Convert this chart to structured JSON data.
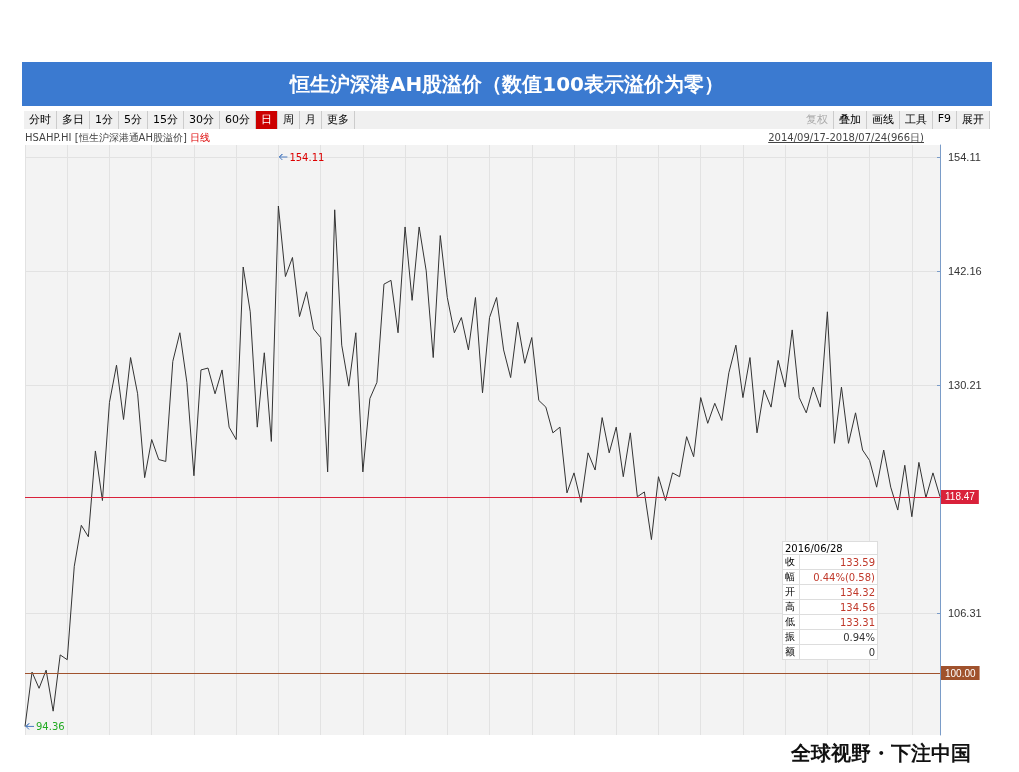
{
  "chart_data": {
    "type": "line",
    "title": "恒生沪深港AH股溢价（数值100表示溢价为零）",
    "subtitle": "HSAHP.HI [恒生沪深港通AH股溢价] 日线",
    "series": [
      {
        "color": "#333333",
        "values": [
          94.4,
          100.1,
          98.4,
          100.3,
          96.0,
          101.9,
          101.4,
          111.2,
          115.5,
          114.3,
          123.3,
          118.1,
          128.4,
          132.3,
          126.6,
          133.1,
          129.3,
          120.5,
          124.5,
          122.4,
          122.2,
          132.7,
          135.7,
          130.5,
          120.7,
          131.8,
          132.0,
          129.3,
          131.8,
          125.8,
          124.5,
          142.6,
          137.9,
          125.8,
          133.6,
          124.3,
          149.0,
          141.6,
          143.6,
          137.4,
          140.0,
          136.1,
          135.2,
          121.1,
          148.6,
          134.4,
          130.1,
          135.7,
          121.1,
          128.8,
          130.5,
          140.8,
          141.2,
          135.7,
          146.8,
          139.1,
          146.8,
          142.2,
          133.1,
          145.9,
          139.4,
          135.7,
          137.3,
          133.9,
          139.4,
          129.4,
          137.3,
          139.4,
          133.9,
          131.0,
          136.8,
          132.5,
          135.2,
          128.6,
          127.9,
          125.2,
          125.8,
          118.9,
          121.0,
          117.9,
          123.1,
          121.3,
          126.8,
          123.1,
          125.8,
          120.6,
          125.2,
          118.5,
          119.0,
          114.0,
          120.6,
          118.1,
          121.0,
          120.6,
          124.8,
          122.7,
          128.9,
          126.2,
          128.3,
          126.5,
          131.5,
          134.4,
          128.9,
          133.1,
          125.2,
          129.7,
          127.9,
          132.8,
          130.0,
          136.0,
          128.9,
          127.3,
          130.0,
          127.9,
          137.9,
          124.1,
          130.0,
          124.1,
          127.3,
          123.4,
          122.3,
          119.5,
          123.4,
          119.5,
          117.1,
          121.8,
          116.4,
          122.1,
          118.4,
          121.0,
          118.5
        ]
      }
    ],
    "categories": [
      null,
      null,
      null,
      null,
      null,
      null,
      null,
      null,
      null,
      null,
      null,
      null,
      null,
      null,
      null,
      null,
      null,
      null,
      null,
      null,
      null,
      null,
      null,
      null,
      null,
      null,
      null,
      null,
      null,
      null,
      null,
      null,
      null,
      null,
      null,
      null,
      null,
      null,
      null,
      null,
      null,
      null,
      null,
      null,
      null,
      null,
      null,
      null,
      null,
      null,
      null,
      null,
      null,
      null,
      null,
      null,
      null,
      null,
      null,
      null,
      null,
      null,
      null,
      null,
      null,
      null,
      null,
      null,
      null,
      null,
      null,
      null,
      null,
      null,
      null,
      null,
      null,
      null,
      null,
      null,
      null,
      null,
      null,
      null,
      null,
      null,
      null,
      null,
      null,
      null,
      null,
      null,
      null,
      null,
      null,
      null,
      null,
      null,
      null,
      null,
      null,
      null,
      null,
      null,
      null,
      null,
      null,
      null,
      null,
      null,
      null,
      null,
      null,
      null,
      null,
      null,
      null,
      null,
      null,
      null,
      null,
      null,
      null,
      null,
      null,
      null,
      null,
      null,
      null,
      null,
      null
    ],
    "ylim": [
      93.5,
      155.4
    ],
    "yticks": [
      106.31,
      130.21,
      142.16,
      154.11
    ],
    "tick_labels": "y",
    "grid": true,
    "marker": "none",
    "line_style": "solid",
    "ref_lines": [
      {
        "axis": "y",
        "value": 118.47,
        "label": "118.47",
        "color": "#d9213a"
      },
      {
        "axis": "y",
        "value": 100,
        "label": "100.00",
        "color": "#a0522d"
      }
    ],
    "annotations": [
      "分时",
      "多日",
      "1分",
      "5分",
      "15分",
      "30分",
      "60分",
      "日",
      "周",
      "月",
      "更多",
      "复权",
      "叠加",
      "画线",
      "工具",
      "F9",
      "展开",
      "2014/09/17-2018/07/24(966日)",
      "2016/06/28",
      "收 133.59",
      "幅 0.44%(0.58)",
      "开 134.32",
      "高 134.56",
      "低 133.31",
      "振 0.94%",
      "额 0",
      "全球视野・下注中国",
      "154.11",
      "94.36"
    ]
  }
}
